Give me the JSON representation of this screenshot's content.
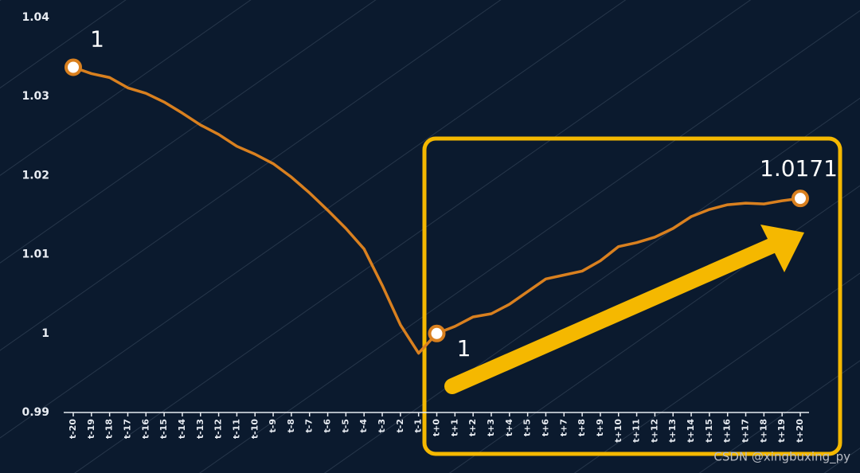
{
  "chart_data": {
    "type": "line",
    "categories": [
      "t-20",
      "t-19",
      "t-18",
      "t-17",
      "t-16",
      "t-15",
      "t-14",
      "t-13",
      "t-12",
      "t-11",
      "t-10",
      "t-9",
      "t-8",
      "t-7",
      "t-6",
      "t-5",
      "t-4",
      "t-3",
      "t-2",
      "t-1",
      "t+0",
      "t+1",
      "t+2",
      "t+3",
      "t+4",
      "t+5",
      "t+6",
      "t+7",
      "t+8",
      "t+9",
      "t+10",
      "t+11",
      "t+12",
      "t+13",
      "t+14",
      "t+15",
      "t+16",
      "t+17",
      "t+18",
      "t+19",
      "t+20"
    ],
    "series": [
      {
        "color": "#d9801f",
        "values": [
          1.0337,
          1.0329,
          1.0324,
          1.0311,
          1.0304,
          1.0293,
          1.0279,
          1.0264,
          1.0252,
          1.0237,
          1.0227,
          1.0215,
          1.0198,
          1.0178,
          1.0156,
          1.0133,
          1.0107,
          1.0061,
          1.0011,
          0.9975,
          1,
          1.0009,
          1.0021,
          1.0025,
          1.0037,
          1.0053,
          1.0069,
          1.0074,
          1.0079,
          1.0092,
          1.011,
          1.0115,
          1.0122,
          1.0133,
          1.0148,
          1.0157,
          1.0163,
          1.0165,
          1.0164,
          1.0168,
          1.0171
        ]
      }
    ],
    "ylim": [
      0.99,
      1.04
    ],
    "yticks": [
      0.99,
      1,
      1.01,
      1.02,
      1.03,
      1.04
    ],
    "annotations": [
      {
        "text": "1",
        "category": "t-20"
      },
      {
        "text": "1",
        "category": "t+0"
      },
      {
        "text": "1.0171",
        "category": "t+20"
      }
    ],
    "watermark": "CSDN @xingbuxing_py"
  }
}
